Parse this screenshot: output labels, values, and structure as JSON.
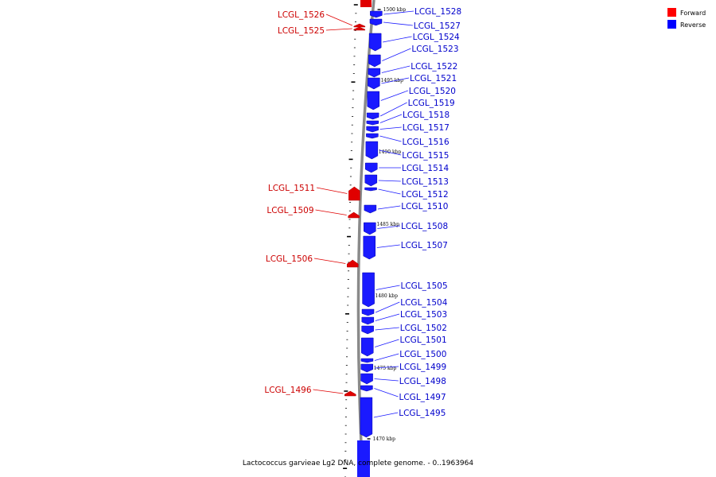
{
  "legend": [
    {
      "label": "Forward",
      "color": "#ff0000"
    },
    {
      "label": "Reverse",
      "color": "#0000ff"
    }
  ],
  "caption": "Lactococcus garvieae Lg2 DNA, complete genome. - 0..1963964",
  "colors": {
    "forward": "#e00000",
    "reverse": "#1a1aff",
    "forward_label": "#cc0000",
    "reverse_label": "#0000cc",
    "backbone": "#8a8a8a"
  },
  "scale_labels": [
    "1500 kbp",
    "1495 kbp",
    "1490 kbp",
    "1485 kbp",
    "1480 kbp",
    "1475 kbp",
    "1470 kbp"
  ],
  "forward_genes": [
    "LCGL_1526",
    "LCGL_1525",
    "LCGL_1511",
    "LCGL_1509",
    "LCGL_1506",
    "LCGL_1496"
  ],
  "reverse_genes": [
    "LCGL_1528",
    "LCGL_1527",
    "LCGL_1524",
    "LCGL_1523",
    "LCGL_1522",
    "LCGL_1521",
    "LCGL_1520",
    "LCGL_1519",
    "LCGL_1518",
    "LCGL_1517",
    "LCGL_1516",
    "LCGL_1515",
    "LCGL_1514",
    "LCGL_1513",
    "LCGL_1512",
    "LCGL_1510",
    "LCGL_1508",
    "LCGL_1507",
    "LCGL_1505",
    "LCGL_1504",
    "LCGL_1503",
    "LCGL_1502",
    "LCGL_1501",
    "LCGL_1500",
    "LCGL_1499",
    "LCGL_1498",
    "LCGL_1497",
    "LCGL_1495"
  ]
}
